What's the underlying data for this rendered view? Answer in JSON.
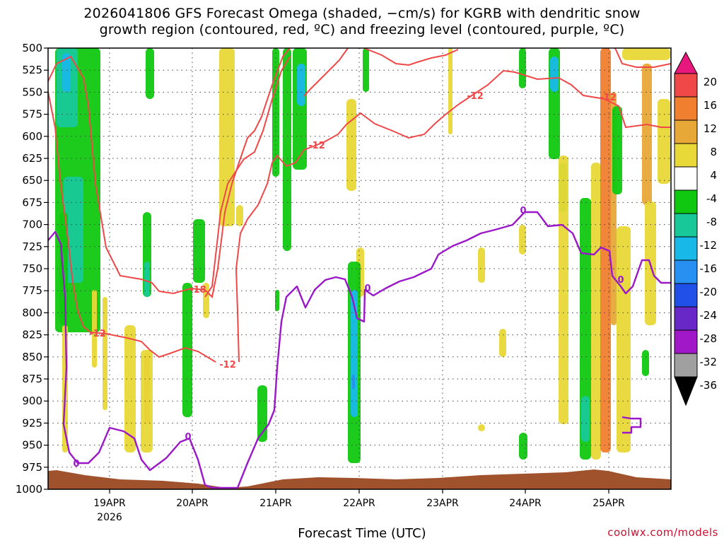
{
  "title_line1": "2026041806 GFS Forecast Omega (shaded, −cm/s) for KGRB with dendritic snow",
  "title_line2": "growth region (contoured, red, ºC) and freezing level (contoured, purple, ºC)",
  "credit": "coolwx.com/models",
  "chart_data": {
    "type": "heatmap",
    "title": "2026041806 GFS Forecast Omega (shaded, −cm/s) for KGRB with dendritic snow growth region (contoured, red, ºC) and freezing level (contoured, purple, ºC)",
    "xlabel": "Forecast Time (UTC)",
    "ylabel": "",
    "x_ticks": [
      "19APR",
      "20APR",
      "21APR",
      "22APR",
      "23APR",
      "24APR",
      "25APR"
    ],
    "x_year": "2026",
    "y_ticks": [
      500,
      525,
      550,
      575,
      600,
      625,
      650,
      675,
      700,
      725,
      750,
      775,
      800,
      825,
      850,
      875,
      900,
      925,
      950,
      975,
      1000
    ],
    "ylim": [
      1000,
      500
    ],
    "grid": true,
    "colorbar": {
      "labels": [
        "20",
        "16",
        "12",
        "8",
        "4",
        "-4",
        "-8",
        "-12",
        "-16",
        "-20",
        "-24",
        "-28",
        "-32",
        "-36"
      ],
      "colors": [
        "#e8177e",
        "#f04848",
        "#f08030",
        "#e8a838",
        "#e8d838",
        "#ffffff",
        "#10c810",
        "#18c898",
        "#18b8e8",
        "#2890f0",
        "#2050e8",
        "#6828c8",
        "#a018c8",
        "#a0a0a0",
        "#000000"
      ]
    },
    "contour_labels": [
      {
        "series": "dendritic",
        "text": "-12"
      },
      {
        "series": "dendritic",
        "text": "-12"
      },
      {
        "series": "dendritic",
        "text": "-12"
      },
      {
        "series": "dendritic",
        "text": "-12"
      },
      {
        "series": "dendritic",
        "text": "-18"
      },
      {
        "series": "dendritic",
        "text": "-12"
      },
      {
        "series": "freezing",
        "text": "0"
      },
      {
        "series": "freezing",
        "text": "0"
      },
      {
        "series": "freezing",
        "text": "0"
      },
      {
        "series": "freezing",
        "text": "0"
      },
      {
        "series": "freezing",
        "text": "0"
      }
    ],
    "series": [
      {
        "kind": "contour",
        "color": "#f04848"
      },
      {
        "kind": "contour",
        "color": "#9a18c8"
      },
      {
        "kind": "terrain",
        "color": "#a0522d"
      }
    ]
  }
}
